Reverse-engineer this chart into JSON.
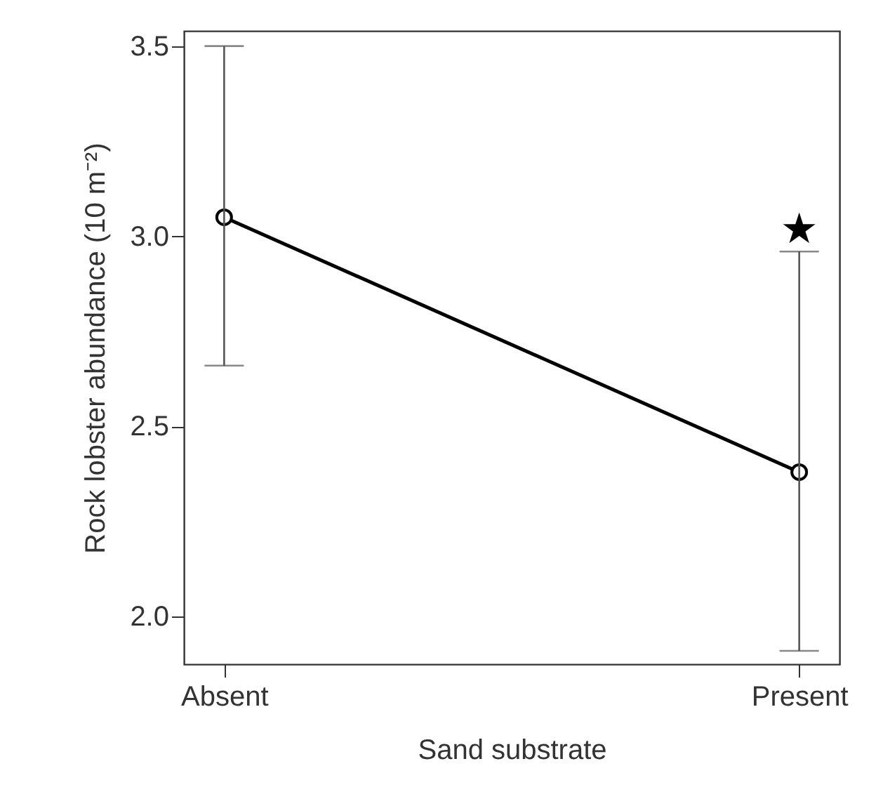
{
  "chart_data": {
    "type": "line",
    "xlabel": "Sand substrate",
    "ylabel": "Rock lobster abundance (10 m⁻²)",
    "categories": [
      "Absent",
      "Present"
    ],
    "series": [
      {
        "color": "#000000",
        "values": [
          3.05,
          2.38
        ],
        "errors": [
          [
            2.66,
            3.5
          ],
          [
            1.91,
            2.96
          ]
        ]
      }
    ],
    "ylim": [
      1.875,
      3.54
    ],
    "yticks": [
      {
        "value": 2,
        "label": "2.0"
      },
      2.5,
      {
        "value": 3,
        "label": "3.0"
      },
      3.5
    ],
    "marker": "circle",
    "line_style": "solid",
    "grid": false,
    "legend": false,
    "annotations": [
      "★"
    ]
  }
}
